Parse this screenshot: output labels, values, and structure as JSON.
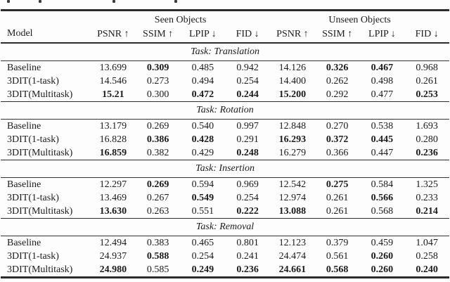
{
  "page": {
    "background": "#fdfdfd",
    "text_color": "#1b1b1b",
    "rule_color": "#2c2c2c"
  },
  "table": {
    "model_header": "Model",
    "groups": [
      {
        "label": "Seen Objects"
      },
      {
        "label": "Unseen Objects"
      }
    ],
    "metric_headers": [
      "PSNR ↑",
      "SSIM ↑",
      "LPIP ↓",
      "FID ↓",
      "PSNR ↑",
      "SSIM ↑",
      "LPIP ↓",
      "FID ↓"
    ],
    "sections": [
      {
        "task": "Task: Translation",
        "rows": [
          {
            "model": "Baseline",
            "values": [
              "13.699",
              "0.309",
              "0.485",
              "0.942",
              "14.126",
              "0.326",
              "0.467",
              "0.968"
            ],
            "bold": [
              false,
              true,
              false,
              false,
              false,
              true,
              true,
              false
            ]
          },
          {
            "model": "3DIT(1-task)",
            "values": [
              "14.546",
              "0.273",
              "0.494",
              "0.254",
              "14.400",
              "0.262",
              "0.498",
              "0.261"
            ],
            "bold": [
              false,
              false,
              false,
              false,
              false,
              false,
              false,
              false
            ]
          },
          {
            "model": "3DIT(Multitask)",
            "values": [
              "15.21",
              "0.300",
              "0.472",
              "0.244",
              "15.200",
              "0.292",
              "0.477",
              "0.253"
            ],
            "bold": [
              true,
              false,
              true,
              true,
              true,
              false,
              false,
              true
            ]
          }
        ]
      },
      {
        "task": "Task: Rotation",
        "rows": [
          {
            "model": "Baseline",
            "values": [
              "13.179",
              "0.269",
              "0.540",
              "0.997",
              "12.848",
              "0.270",
              "0.538",
              "1.693"
            ],
            "bold": [
              false,
              false,
              false,
              false,
              false,
              false,
              false,
              false
            ]
          },
          {
            "model": "3DIT(1-task)",
            "values": [
              "16.828",
              "0.386",
              "0.428",
              "0.291",
              "16.293",
              "0.372",
              "0.445",
              "0.280"
            ],
            "bold": [
              false,
              true,
              true,
              false,
              true,
              true,
              true,
              false
            ]
          },
          {
            "model": "3DIT(Multitask)",
            "values": [
              "16.859",
              "0.382",
              "0.429",
              "0.248",
              "16.279",
              "0.366",
              "0.447",
              "0.236"
            ],
            "bold": [
              true,
              false,
              false,
              true,
              false,
              false,
              false,
              true
            ]
          }
        ]
      },
      {
        "task": "Task: Insertion",
        "rows": [
          {
            "model": "Baseline",
            "values": [
              "12.297",
              "0.269",
              "0.594",
              "0.969",
              "12.542",
              "0.275",
              "0.584",
              "1.325"
            ],
            "bold": [
              false,
              true,
              false,
              false,
              false,
              true,
              false,
              false
            ]
          },
          {
            "model": "3DIT(1-task)",
            "values": [
              "13.469",
              "0.267",
              "0.549",
              "0.254",
              "12.974",
              "0.261",
              "0.566",
              "0.233"
            ],
            "bold": [
              false,
              false,
              true,
              false,
              false,
              false,
              true,
              false
            ]
          },
          {
            "model": "3DIT(Multitask)",
            "values": [
              "13.630",
              "0.263",
              "0.551",
              "0.222",
              "13.088",
              "0.261",
              "0.568",
              "0.214"
            ],
            "bold": [
              true,
              false,
              false,
              true,
              true,
              false,
              false,
              true
            ]
          }
        ]
      },
      {
        "task": "Task: Removal",
        "rows": [
          {
            "model": "Baseline",
            "values": [
              "12.494",
              "0.383",
              "0.465",
              "0.801",
              "12.123",
              "0.379",
              "0.459",
              "1.047"
            ],
            "bold": [
              false,
              false,
              false,
              false,
              false,
              false,
              false,
              false
            ]
          },
          {
            "model": "3DIT(1-task)",
            "values": [
              "24.937",
              "0.588",
              "0.254",
              "0.241",
              "24.474",
              "0.561",
              "0.260",
              "0.258"
            ],
            "bold": [
              false,
              true,
              false,
              false,
              false,
              false,
              true,
              false
            ]
          },
          {
            "model": "3DIT(Multitask)",
            "values": [
              "24.980",
              "0.585",
              "0.249",
              "0.236",
              "24.661",
              "0.568",
              "0.260",
              "0.240"
            ],
            "bold": [
              true,
              false,
              true,
              true,
              true,
              true,
              true,
              true
            ]
          }
        ]
      }
    ]
  }
}
